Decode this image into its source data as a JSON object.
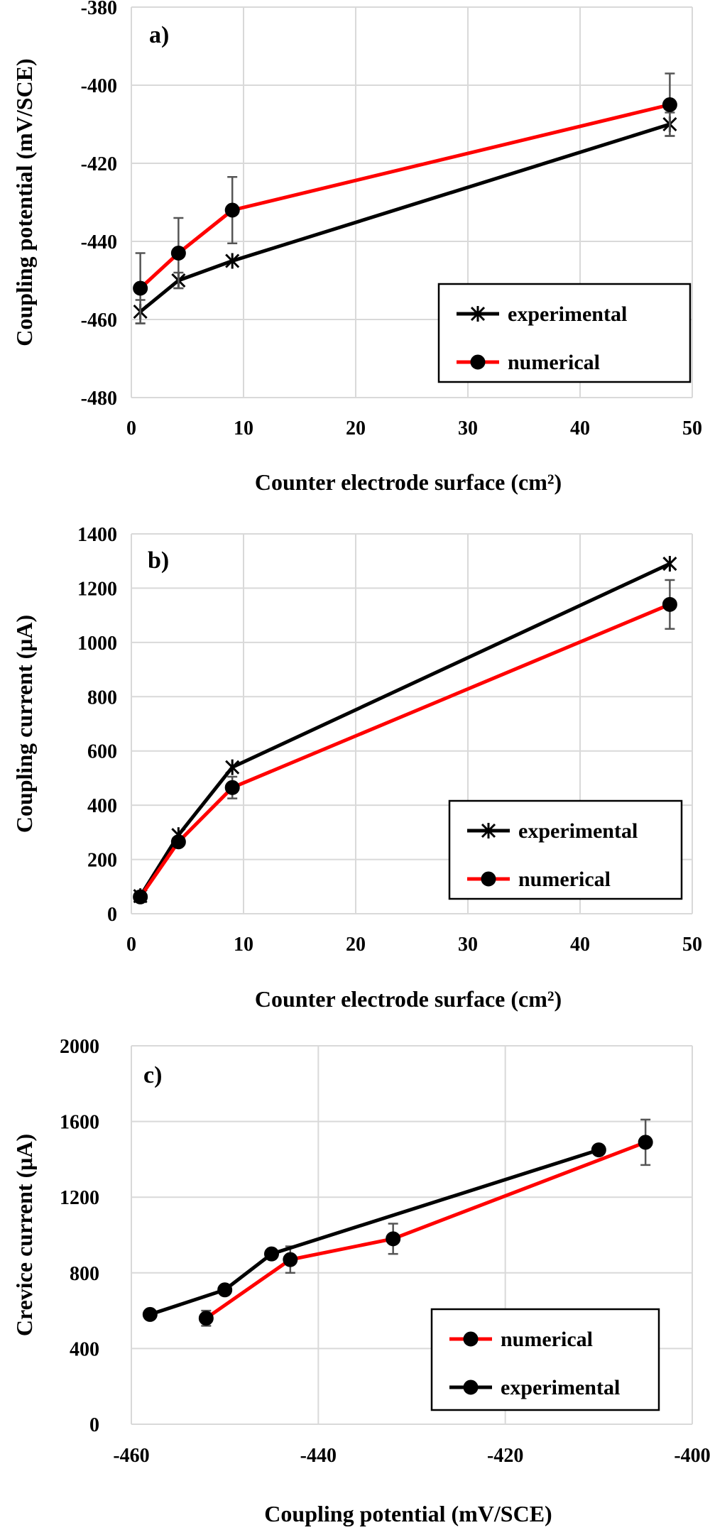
{
  "chart_data": [
    {
      "type": "line",
      "panel_label": "a)",
      "xlabel": "Counter electrode surface (cm²)",
      "ylabel": "Coupling potential  (mV/SCE)",
      "xlim": [
        0,
        50
      ],
      "ylim": [
        -480,
        -380
      ],
      "xticks": [
        0,
        10,
        20,
        30,
        40,
        50
      ],
      "yticks": [
        -480,
        -460,
        -440,
        -420,
        -400,
        -380
      ],
      "grid": true,
      "legend_position": "bottom-right",
      "series": [
        {
          "name": "experimental",
          "marker": "asterisk",
          "color": "#000000",
          "x": [
            0.8,
            4.2,
            9,
            48
          ],
          "y": [
            -458,
            -450,
            -445,
            -410
          ],
          "yerr": [
            3,
            2,
            0,
            3
          ]
        },
        {
          "name": "numerical",
          "marker": "circle",
          "color": "#ff0000",
          "x": [
            0.8,
            4.2,
            9,
            48
          ],
          "y": [
            -452,
            -443,
            -432,
            -405
          ],
          "yerr": [
            9,
            9,
            8.5,
            8
          ]
        }
      ]
    },
    {
      "type": "line",
      "panel_label": "b)",
      "xlabel": "Counter electrode surface (cm²)",
      "ylabel": "Coupling current (μA)",
      "xlim": [
        0,
        50
      ],
      "ylim": [
        0,
        1400
      ],
      "xticks": [
        0,
        10,
        20,
        30,
        40,
        50
      ],
      "yticks": [
        0,
        200,
        400,
        600,
        800,
        1000,
        1200,
        1400
      ],
      "grid": true,
      "legend_position": "bottom-right",
      "series": [
        {
          "name": "experimental",
          "marker": "asterisk",
          "color": "#000000",
          "x": [
            0.8,
            4.2,
            9,
            48
          ],
          "y": [
            65,
            290,
            540,
            1290
          ],
          "yerr": [
            0,
            0,
            0,
            0
          ]
        },
        {
          "name": "numerical",
          "marker": "circle",
          "color": "#ff0000",
          "x": [
            0.8,
            4.2,
            9,
            48
          ],
          "y": [
            62,
            265,
            465,
            1140
          ],
          "yerr": [
            0,
            0,
            40,
            90
          ]
        }
      ]
    },
    {
      "type": "line",
      "panel_label": "c)",
      "xlabel": "Coupling potential (mV/SCE)",
      "ylabel": "Crevice current (μA)",
      "xlim": [
        -460,
        -400
      ],
      "ylim": [
        0,
        2000
      ],
      "xticks": [
        -460,
        -440,
        -420,
        -400
      ],
      "yticks": [
        0,
        400,
        800,
        1200,
        1600,
        2000
      ],
      "grid": true,
      "legend_position": "bottom-right",
      "series": [
        {
          "name": "numerical",
          "marker": "circle",
          "color": "#ff0000",
          "x": [
            -452,
            -443,
            -432,
            -405
          ],
          "y": [
            560,
            870,
            980,
            1490
          ],
          "yerr": [
            40,
            70,
            80,
            120
          ]
        },
        {
          "name": "experimental",
          "marker": "circle",
          "color": "#000000",
          "x": [
            -458,
            -450,
            -445,
            -410
          ],
          "y": [
            580,
            710,
            900,
            1450
          ],
          "yerr": [
            0,
            0,
            0,
            0
          ]
        }
      ]
    }
  ]
}
